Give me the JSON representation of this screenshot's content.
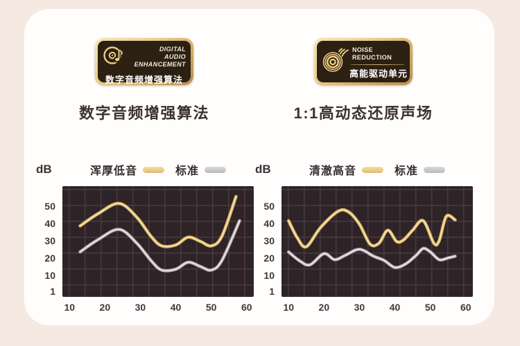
{
  "page": {
    "background": "#f6e9e1",
    "card_background": "#fffefd"
  },
  "colors": {
    "plot_bg": "#2e2427",
    "grid_line": "#493a3e",
    "gold": {
      "base": "#d9b469",
      "hi": "#f4e5ae"
    },
    "gray": {
      "base": "#b5a8ad",
      "hi": "#efeaed"
    },
    "badge_gold": "#e7c886",
    "badge_inner": "#2c2013",
    "heading_text": "#3b3130"
  },
  "badges": [
    {
      "icon": "disc-music-note-icon",
      "en_lines": [
        "DIGITAL",
        "AUDIO",
        "ENHANCEMENT"
      ],
      "cn": "数字音频增强算法"
    },
    {
      "icon": "speaker-waves-icon",
      "en_lines": [
        "NOISE",
        "REDUCTION"
      ],
      "cn": "高能驱动单元"
    }
  ],
  "headings": [
    "数字音频增强算法",
    "1:1高动态还原声场"
  ],
  "chart_data": [
    {
      "type": "line",
      "title": "数字音频增强算法",
      "unit_label": "dB",
      "ylabel": "dB",
      "xlabel": "",
      "x_ticks": [
        10,
        20,
        30,
        40,
        50,
        60
      ],
      "y_ticks": [
        50,
        40,
        30,
        20,
        10,
        1
      ],
      "x_range": [
        8,
        62
      ],
      "y_range": [
        -2,
        62
      ],
      "grid": true,
      "legend_position": "top",
      "series": [
        {
          "name": "浑厚低音",
          "color": "gold",
          "points": [
            [
              13,
              39
            ],
            [
              18,
              46
            ],
            [
              24,
              52
            ],
            [
              29,
              44
            ],
            [
              33,
              33
            ],
            [
              36,
              27.5
            ],
            [
              40,
              28
            ],
            [
              43.5,
              32.5
            ],
            [
              47,
              30
            ],
            [
              50,
              27.5
            ],
            [
              53,
              33
            ],
            [
              57,
              56
            ]
          ]
        },
        {
          "name": "标准",
          "color": "gray",
          "points": [
            [
              13,
              24
            ],
            [
              18,
              31
            ],
            [
              24,
              37
            ],
            [
              29,
              29
            ],
            [
              33,
              19
            ],
            [
              36,
              13.5
            ],
            [
              40,
              14
            ],
            [
              43.5,
              18
            ],
            [
              47,
              15.5
            ],
            [
              50,
              13.5
            ],
            [
              53,
              19
            ],
            [
              58,
              42
            ]
          ]
        }
      ]
    },
    {
      "type": "line",
      "title": "1:1高动态还原声场",
      "unit_label": "dB",
      "ylabel": "dB",
      "xlabel": "",
      "x_ticks": [
        10,
        20,
        30,
        40,
        50,
        60
      ],
      "y_ticks": [
        50,
        40,
        30,
        20,
        10,
        1
      ],
      "x_range": [
        8,
        62
      ],
      "y_range": [
        -2,
        62
      ],
      "grid": true,
      "legend_position": "top",
      "series": [
        {
          "name": "清澈高音",
          "color": "gold",
          "points": [
            [
              10,
              42
            ],
            [
              12.5,
              32
            ],
            [
              15,
              27
            ],
            [
              19,
              38
            ],
            [
              24,
              47.5
            ],
            [
              27,
              47
            ],
            [
              30,
              40
            ],
            [
              33,
              28.5
            ],
            [
              35.5,
              29
            ],
            [
              38,
              36.5
            ],
            [
              40.5,
              30
            ],
            [
              42.5,
              31
            ],
            [
              45,
              36.5
            ],
            [
              48,
              42
            ],
            [
              51,
              29
            ],
            [
              52.5,
              30.5
            ],
            [
              54.5,
              44.5
            ],
            [
              57,
              42.5
            ]
          ]
        },
        {
          "name": "标准",
          "color": "gray",
          "points": [
            [
              10,
              24
            ],
            [
              13,
              19
            ],
            [
              16,
              16.5
            ],
            [
              20,
              23
            ],
            [
              23,
              19.5
            ],
            [
              26,
              22
            ],
            [
              30,
              25.5
            ],
            [
              34,
              21.5
            ],
            [
              37,
              19
            ],
            [
              40,
              15
            ],
            [
              43,
              17
            ],
            [
              46,
              22
            ],
            [
              48,
              26
            ],
            [
              50,
              24
            ],
            [
              52.5,
              19.5
            ],
            [
              55,
              20.5
            ],
            [
              57,
              21.5
            ]
          ]
        }
      ]
    }
  ]
}
